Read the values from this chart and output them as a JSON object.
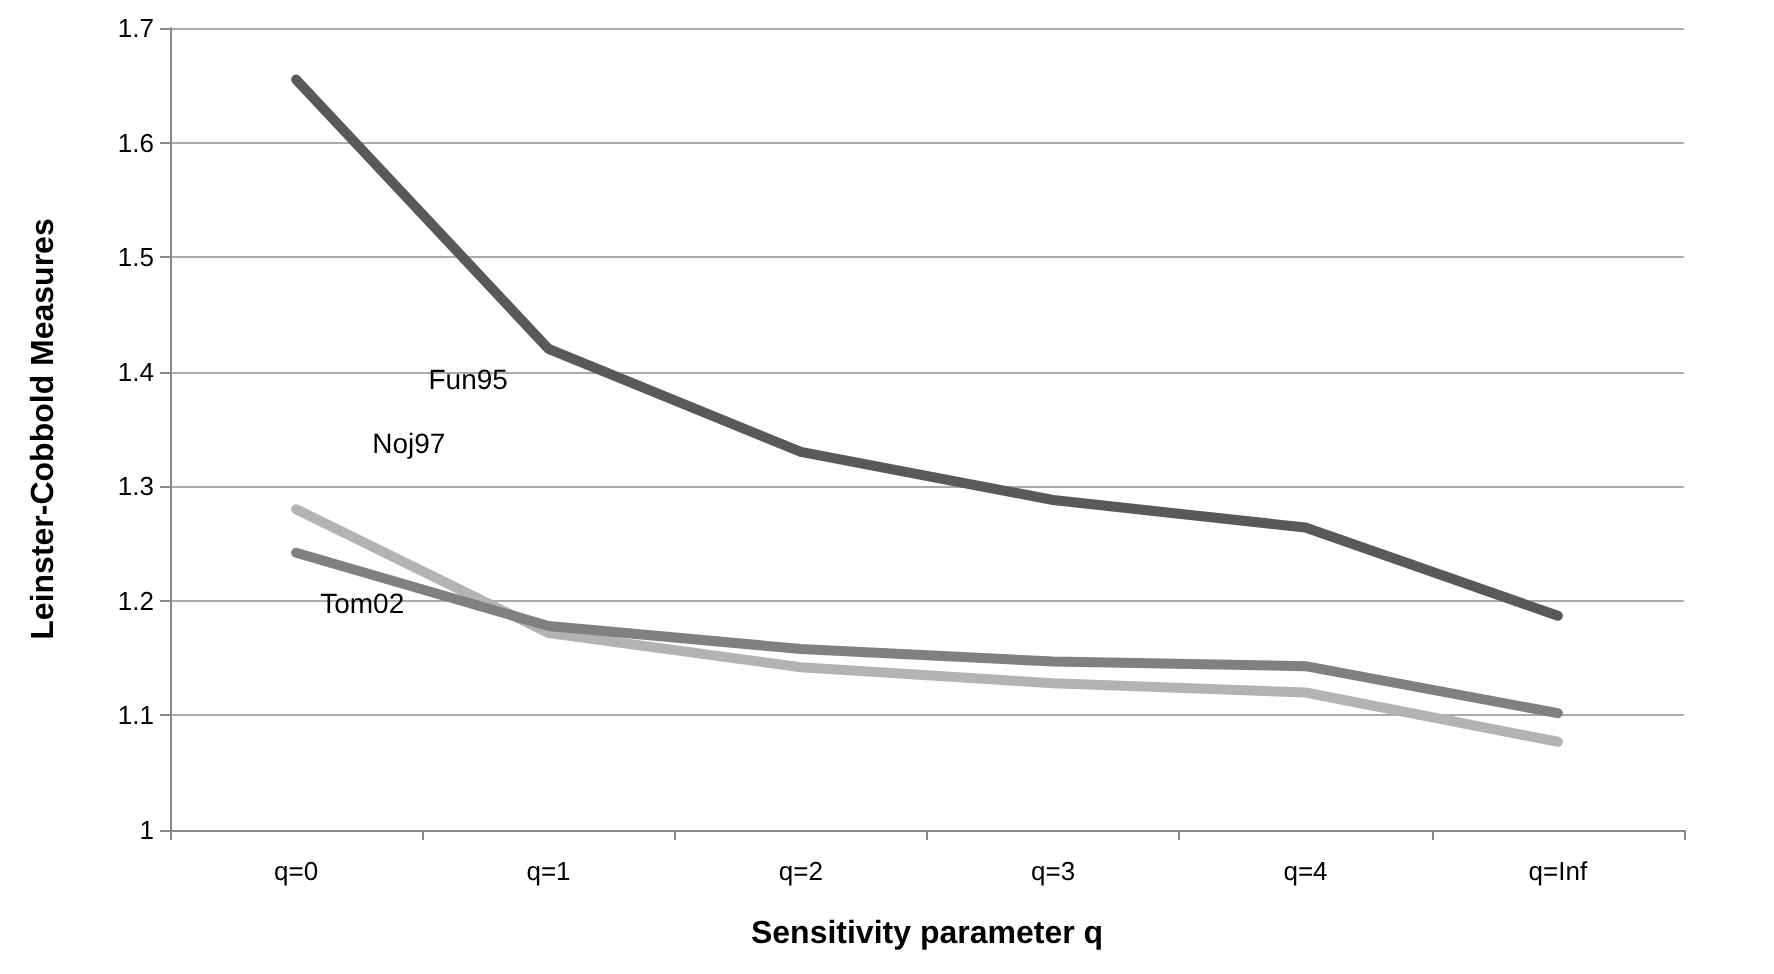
{
  "chart_data": {
    "type": "line",
    "xlabel": "Sensitivity parameter q",
    "ylabel": "Leinster-Cobbold Measures",
    "categories": [
      "q=0",
      "q=1",
      "q=2",
      "q=3",
      "q=4",
      "q=Inf"
    ],
    "series": [
      {
        "name": "Fun95",
        "color": "#595959",
        "values": [
          1.655,
          1.42,
          1.33,
          1.288,
          1.264,
          1.187
        ]
      },
      {
        "name": "Noj97",
        "color": "#b3b3b3",
        "values": [
          1.28,
          1.172,
          1.142,
          1.128,
          1.12,
          1.077
        ]
      },
      {
        "name": "Tom02",
        "color": "#808080",
        "values": [
          1.242,
          1.178,
          1.158,
          1.147,
          1.143,
          1.102
        ]
      }
    ],
    "ylim": [
      1,
      1.7
    ],
    "yticks": [
      1,
      1.1,
      1.2,
      1.3,
      1.4,
      1.5,
      1.6,
      1.7
    ],
    "grid": "y",
    "legend": false,
    "marker": "none",
    "line_style": "solid"
  }
}
